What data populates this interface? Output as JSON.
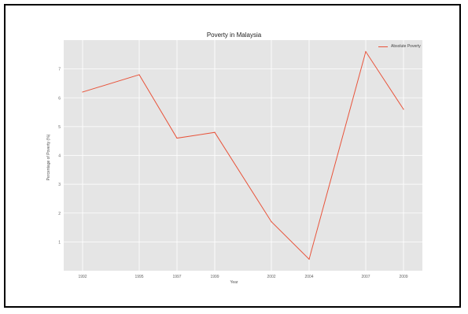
{
  "chart_data": {
    "type": "line",
    "title": "Poverty in Malaysia",
    "xlabel": "Year",
    "ylabel": "Percentage of Poverty (%)",
    "x": [
      1992,
      1995,
      1997,
      1999,
      2002,
      2004,
      2007,
      2009
    ],
    "series": [
      {
        "name": "Absolute Poverty",
        "values": [
          6.2,
          6.8,
          4.6,
          4.8,
          1.7,
          0.4,
          7.6,
          5.6
        ],
        "color": "#e8533a"
      }
    ],
    "yticks": [
      1,
      2,
      3,
      4,
      5,
      6,
      7
    ],
    "xlim": [
      1991,
      2010
    ],
    "ylim": [
      0,
      8
    ],
    "grid": true,
    "legend": "top-right",
    "panel_color": "#e5e5e5"
  }
}
